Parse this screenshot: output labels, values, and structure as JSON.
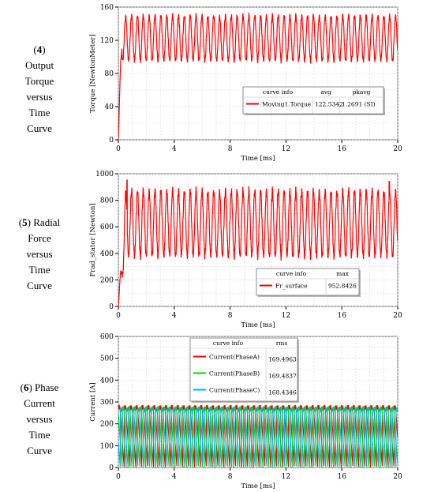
{
  "captions": [
    {
      "num": "4",
      "lines": [
        "Output",
        "Torque",
        "versus",
        "Time",
        "Curve"
      ]
    },
    {
      "num": "5",
      "first_text": " Radial",
      "lines": [
        "Force",
        "versus",
        "Time",
        "Curve"
      ]
    },
    {
      "num": "6",
      "first_text": " Phase",
      "lines": [
        "Current",
        "versus",
        "Time",
        "Curve"
      ]
    }
  ],
  "chart_data": [
    {
      "type": "line",
      "xlabel": "Time [ms]",
      "ylabel": "Torque [NewtonMeter]",
      "xlim": [
        0,
        20
      ],
      "ylim": [
        0,
        160
      ],
      "xticks": [
        0,
        4,
        8,
        12,
        16,
        20
      ],
      "yticks": [
        0,
        40,
        80,
        120,
        160
      ],
      "grid": true,
      "legend": {
        "position": "bottom-right",
        "headers": [
          "curve info",
          "avg",
          "pkavg"
        ],
        "rows": [
          {
            "name": "Moving1.Torque",
            "color": "#ff0000",
            "values": [
              "122.5342",
              "1.2691 (SI)"
            ]
          }
        ]
      },
      "series": [
        {
          "name": "Moving1.Torque",
          "color": "#ff0000",
          "shape": "sine",
          "rise_ms": 0.25,
          "start": 0,
          "mean": 122.5,
          "amplitude": 27,
          "period_ms": 0.42,
          "noise": 3
        }
      ]
    },
    {
      "type": "line",
      "xlabel": "Time [ms]",
      "ylabel": "Frad_stator [Newton]",
      "xlim": [
        0,
        20
      ],
      "ylim": [
        0,
        1000
      ],
      "xticks": [
        0,
        4,
        8,
        12,
        16,
        20
      ],
      "yticks": [
        0,
        200,
        400,
        600,
        800,
        1000
      ],
      "grid": true,
      "legend": {
        "position": "bottom-right",
        "headers": [
          "curve info",
          "max"
        ],
        "rows": [
          {
            "name": "Fr_surface",
            "color": "#ff0000",
            "values": [
              "952.8426"
            ]
          }
        ]
      },
      "series": [
        {
          "name": "Fr_surface",
          "color": "#ff0000",
          "shape": "sine",
          "rise_ms": 0.5,
          "start": 0,
          "mean": 625,
          "amplitude": 245,
          "period_ms": 0.42,
          "noise": 30,
          "peak": 952.8
        }
      ]
    },
    {
      "type": "line",
      "xlabel": "Time [ms]",
      "ylabel": "Current [A]",
      "xlim": [
        0,
        20
      ],
      "ylim": [
        0,
        600
      ],
      "xticks": [
        0,
        4,
        8,
        12,
        16,
        20
      ],
      "yticks": [
        0,
        100,
        200,
        300,
        400,
        500,
        600
      ],
      "grid": true,
      "legend": {
        "position": "top-center",
        "headers": [
          "curve info",
          "rms"
        ],
        "rows": [
          {
            "name": "Current(PhaseA)",
            "color": "#ff0000",
            "values": [
              "169.4963"
            ]
          },
          {
            "name": "Current(PhaseB)",
            "color": "#00dd00",
            "values": [
              "169.4837"
            ]
          },
          {
            "name": "Current(PhaseC)",
            "color": "#00b0f0",
            "values": [
              "168.4346"
            ]
          }
        ]
      },
      "series": [
        {
          "name": "Current(PhaseA)",
          "color": "#ff0000",
          "shape": "saw",
          "period_ms": 0.42,
          "phase": 0.0,
          "top": 275,
          "ripple": 10
        },
        {
          "name": "Current(PhaseB)",
          "color": "#00dd00",
          "shape": "saw",
          "period_ms": 0.42,
          "phase": 0.333,
          "top": 270,
          "ripple": 10
        },
        {
          "name": "Current(PhaseC)",
          "color": "#00b0f0",
          "shape": "saw",
          "period_ms": 0.42,
          "phase": 0.667,
          "top": 265,
          "ripple": 10
        }
      ]
    }
  ]
}
